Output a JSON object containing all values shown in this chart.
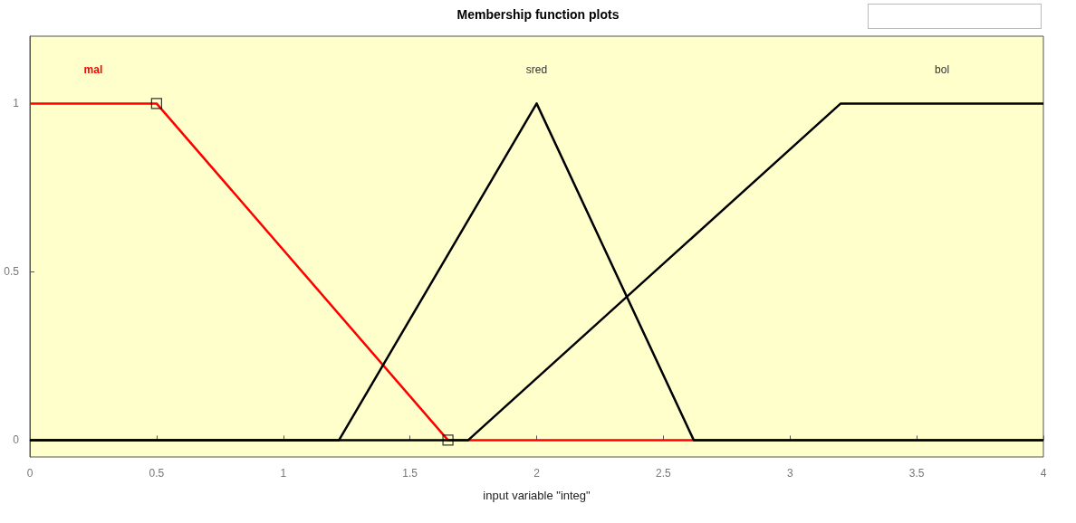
{
  "chart_data": {
    "type": "line",
    "title": "Membership function plots",
    "xlabel": "input variable \"integ\"",
    "xlim": [
      0,
      4
    ],
    "xticks": [
      0,
      0.5,
      1,
      1.5,
      2,
      2.5,
      3,
      3.5,
      4
    ],
    "ylim": [
      -0.05,
      1.2
    ],
    "yticks": [
      0,
      0.5,
      1
    ],
    "legend": false,
    "marker": "none",
    "series": [
      {
        "name": "mal",
        "color": "#ff0000",
        "x": [
          0,
          0.5,
          1.65,
          4
        ],
        "values": [
          1,
          1,
          0,
          0
        ]
      },
      {
        "name": "sred",
        "color": "#000000",
        "x": [
          0,
          1.22,
          2,
          2.62,
          4
        ],
        "values": [
          0,
          0,
          1,
          0,
          0
        ]
      },
      {
        "name": "bol",
        "color": "#000000",
        "x": [
          0,
          1.73,
          3.2,
          4
        ],
        "values": [
          0,
          0,
          1,
          1
        ]
      },
      {
        "type": "scatter",
        "marker": "square",
        "color": "#000000",
        "x": [
          0.5,
          1.65
        ],
        "values": [
          1,
          0
        ]
      }
    ]
  }
}
